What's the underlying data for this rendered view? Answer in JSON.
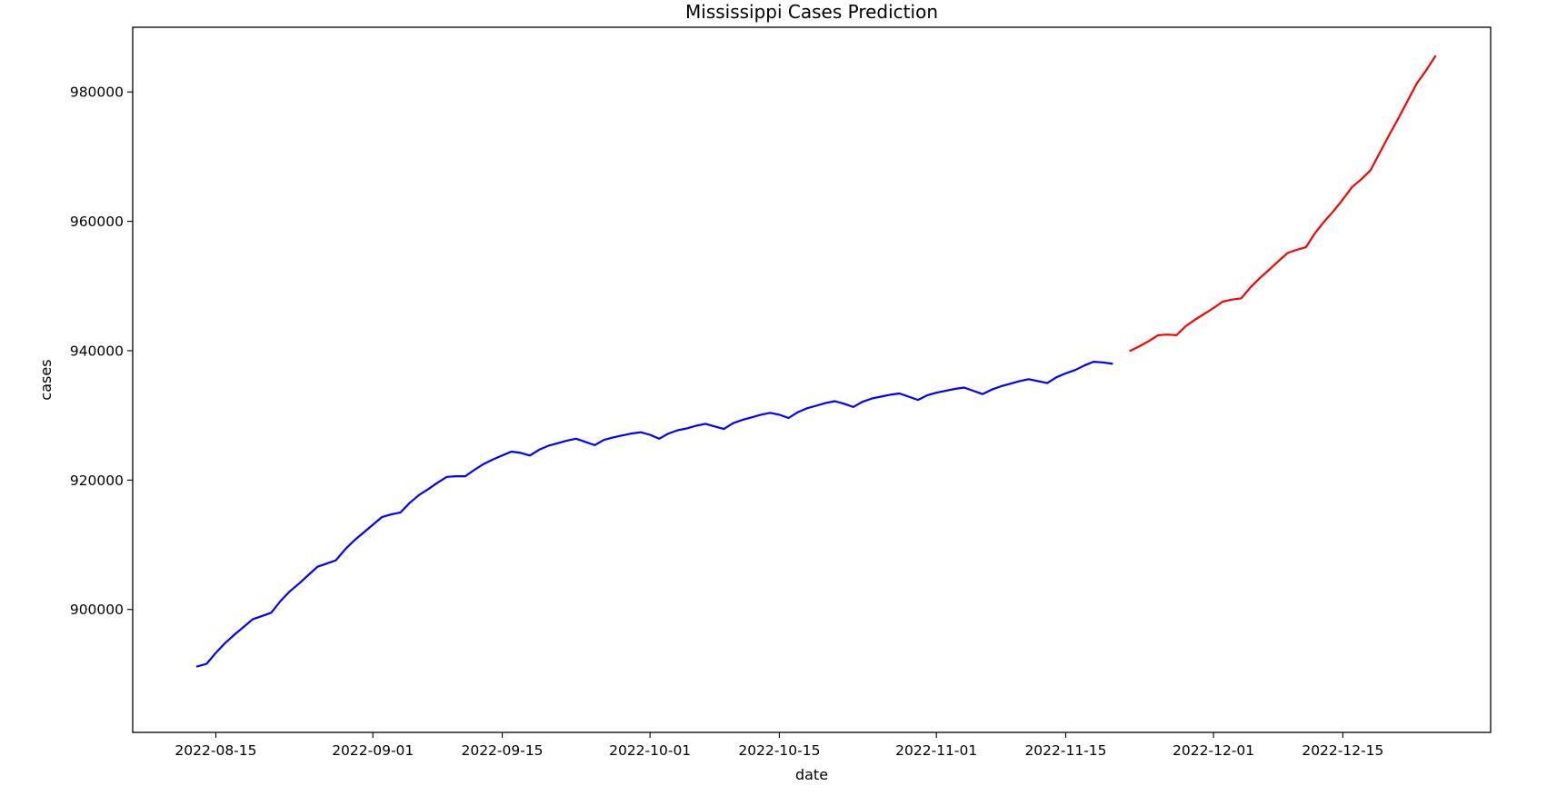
{
  "chart_data": {
    "type": "line",
    "title": "Mississippi Cases Prediction",
    "xlabel": "date",
    "ylabel": "cases",
    "x_ticks": [
      "2022-08-15",
      "2022-09-01",
      "2022-09-15",
      "2022-10-01",
      "2022-10-15",
      "2022-11-01",
      "2022-11-15",
      "2022-12-01",
      "2022-12-15"
    ],
    "y_ticks": [
      900000,
      920000,
      940000,
      960000,
      980000
    ],
    "y_tick_labels": [
      "900000",
      "920000",
      "940000",
      "960000",
      "980000"
    ],
    "xlim": [
      "2022-08-06",
      "2022-12-31"
    ],
    "ylim": [
      881000,
      990000
    ],
    "grid": false,
    "series": [
      {
        "color": "#0000ff",
        "points": [
          [
            "2022-08-13",
            891200
          ],
          [
            "2022-08-14",
            891600
          ],
          [
            "2022-08-15",
            893300
          ],
          [
            "2022-08-16",
            894800
          ],
          [
            "2022-08-17",
            896100
          ],
          [
            "2022-08-18",
            897300
          ],
          [
            "2022-08-19",
            898500
          ],
          [
            "2022-08-20",
            899000
          ],
          [
            "2022-08-21",
            899500
          ],
          [
            "2022-08-22",
            901300
          ],
          [
            "2022-08-23",
            902800
          ],
          [
            "2022-08-24",
            904000
          ],
          [
            "2022-08-25",
            905300
          ],
          [
            "2022-08-26",
            906600
          ],
          [
            "2022-08-27",
            907100
          ],
          [
            "2022-08-28",
            907600
          ],
          [
            "2022-08-29",
            909300
          ],
          [
            "2022-08-30",
            910700
          ],
          [
            "2022-08-31",
            911900
          ],
          [
            "2022-09-01",
            913100
          ],
          [
            "2022-09-02",
            914300
          ],
          [
            "2022-09-03",
            914700
          ],
          [
            "2022-09-04",
            915000
          ],
          [
            "2022-09-05",
            916500
          ],
          [
            "2022-09-06",
            917700
          ],
          [
            "2022-09-07",
            918600
          ],
          [
            "2022-09-08",
            919600
          ],
          [
            "2022-09-09",
            920500
          ],
          [
            "2022-09-10",
            920600
          ],
          [
            "2022-09-11",
            920600
          ],
          [
            "2022-09-12",
            921600
          ],
          [
            "2022-09-13",
            922500
          ],
          [
            "2022-09-14",
            923200
          ],
          [
            "2022-09-15",
            923800
          ],
          [
            "2022-09-16",
            924400
          ],
          [
            "2022-09-17",
            924200
          ],
          [
            "2022-09-18",
            923800
          ],
          [
            "2022-09-19",
            924700
          ],
          [
            "2022-09-20",
            925300
          ],
          [
            "2022-09-21",
            925700
          ],
          [
            "2022-09-22",
            926100
          ],
          [
            "2022-09-23",
            926400
          ],
          [
            "2022-09-24",
            925900
          ],
          [
            "2022-09-25",
            925400
          ],
          [
            "2022-09-26",
            926200
          ],
          [
            "2022-09-27",
            926600
          ],
          [
            "2022-09-28",
            926900
          ],
          [
            "2022-09-29",
            927200
          ],
          [
            "2022-09-30",
            927400
          ],
          [
            "2022-10-01",
            927000
          ],
          [
            "2022-10-02",
            926400
          ],
          [
            "2022-10-03",
            927200
          ],
          [
            "2022-10-04",
            927700
          ],
          [
            "2022-10-05",
            928000
          ],
          [
            "2022-10-06",
            928400
          ],
          [
            "2022-10-07",
            928700
          ],
          [
            "2022-10-08",
            928300
          ],
          [
            "2022-10-09",
            927900
          ],
          [
            "2022-10-10",
            928800
          ],
          [
            "2022-10-11",
            929300
          ],
          [
            "2022-10-12",
            929700
          ],
          [
            "2022-10-13",
            930100
          ],
          [
            "2022-10-14",
            930400
          ],
          [
            "2022-10-15",
            930100
          ],
          [
            "2022-10-16",
            929600
          ],
          [
            "2022-10-17",
            930500
          ],
          [
            "2022-10-18",
            931100
          ],
          [
            "2022-10-19",
            931500
          ],
          [
            "2022-10-20",
            931900
          ],
          [
            "2022-10-21",
            932200
          ],
          [
            "2022-10-22",
            931800
          ],
          [
            "2022-10-23",
            931300
          ],
          [
            "2022-10-24",
            932100
          ],
          [
            "2022-10-25",
            932600
          ],
          [
            "2022-10-26",
            932900
          ],
          [
            "2022-10-27",
            933200
          ],
          [
            "2022-10-28",
            933400
          ],
          [
            "2022-10-29",
            932900
          ],
          [
            "2022-10-30",
            932400
          ],
          [
            "2022-10-31",
            933100
          ],
          [
            "2022-11-01",
            933500
          ],
          [
            "2022-11-02",
            933800
          ],
          [
            "2022-11-03",
            934100
          ],
          [
            "2022-11-04",
            934300
          ],
          [
            "2022-11-05",
            933800
          ],
          [
            "2022-11-06",
            933300
          ],
          [
            "2022-11-07",
            934000
          ],
          [
            "2022-11-08",
            934500
          ],
          [
            "2022-11-09",
            934900
          ],
          [
            "2022-11-10",
            935300
          ],
          [
            "2022-11-11",
            935600
          ],
          [
            "2022-11-12",
            935300
          ],
          [
            "2022-11-13",
            935000
          ],
          [
            "2022-11-14",
            935900
          ],
          [
            "2022-11-15",
            936500
          ],
          [
            "2022-11-16",
            937000
          ],
          [
            "2022-11-17",
            937700
          ],
          [
            "2022-11-18",
            938300
          ],
          [
            "2022-11-19",
            938200
          ],
          [
            "2022-11-20",
            938000
          ]
        ]
      },
      {
        "color": "#ff0000",
        "points": [
          [
            "2022-11-22",
            940000
          ],
          [
            "2022-11-23",
            940700
          ],
          [
            "2022-11-24",
            941500
          ],
          [
            "2022-11-25",
            942400
          ],
          [
            "2022-11-26",
            942500
          ],
          [
            "2022-11-27",
            942400
          ],
          [
            "2022-11-28",
            943800
          ],
          [
            "2022-11-29",
            944800
          ],
          [
            "2022-11-30",
            945700
          ],
          [
            "2022-12-01",
            946600
          ],
          [
            "2022-12-02",
            947600
          ],
          [
            "2022-12-03",
            947900
          ],
          [
            "2022-12-04",
            948100
          ],
          [
            "2022-12-05",
            949800
          ],
          [
            "2022-12-06",
            951200
          ],
          [
            "2022-12-07",
            952500
          ],
          [
            "2022-12-08",
            953800
          ],
          [
            "2022-12-09",
            955100
          ],
          [
            "2022-12-10",
            955600
          ],
          [
            "2022-12-11",
            956000
          ],
          [
            "2022-12-12",
            958200
          ],
          [
            "2022-12-13",
            960000
          ],
          [
            "2022-12-14",
            961600
          ],
          [
            "2022-12-15",
            963400
          ],
          [
            "2022-12-16",
            965300
          ],
          [
            "2022-12-17",
            966500
          ],
          [
            "2022-12-18",
            967900
          ],
          [
            "2022-12-19",
            970600
          ],
          [
            "2022-12-20",
            973300
          ],
          [
            "2022-12-21",
            975900
          ],
          [
            "2022-12-22",
            978600
          ],
          [
            "2022-12-23",
            981300
          ],
          [
            "2022-12-24",
            983300
          ],
          [
            "2022-12-25",
            985500
          ]
        ]
      }
    ]
  }
}
